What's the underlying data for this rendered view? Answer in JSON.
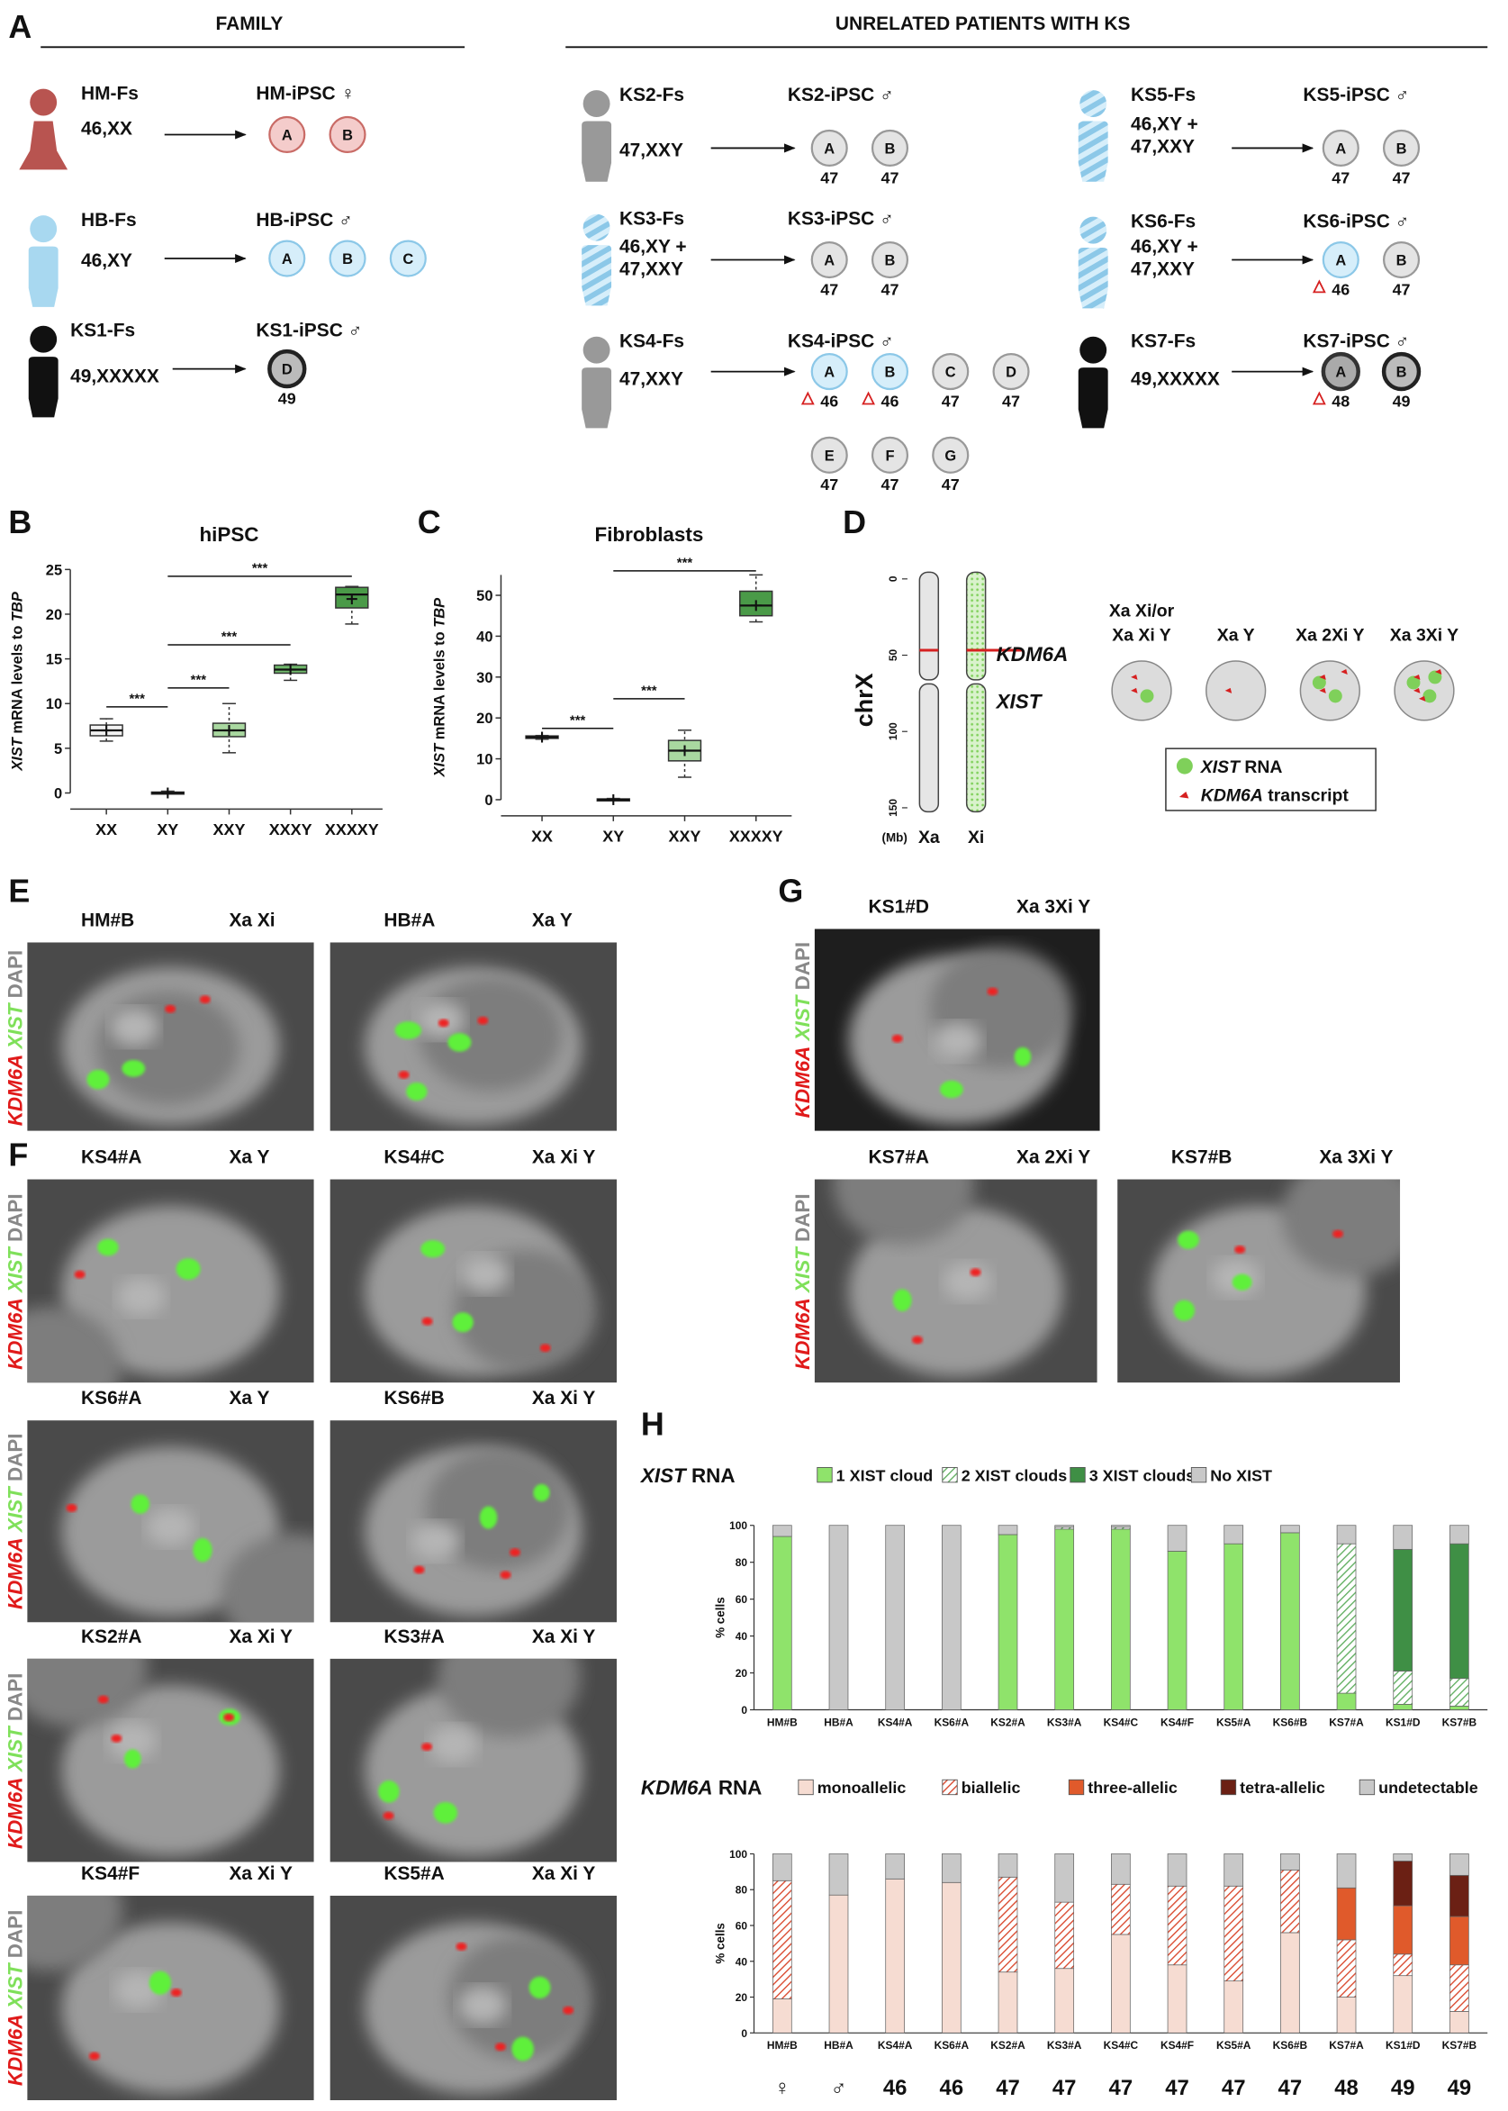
{
  "panel_labels": [
    "A",
    "B",
    "C",
    "D",
    "E",
    "F",
    "G",
    "H"
  ],
  "panel_a": {
    "family_title": "FAMILY",
    "unrelated_title": "UNRELATED PATIENTS WITH KS",
    "lines": [
      {
        "fibroblast": "HM-Fs",
        "karyotype": [
          "46,XX"
        ],
        "ipsc": "HM-iPSC ♀",
        "icon_color": "#b85450",
        "female": true,
        "clones": [
          {
            "id": "A",
            "fill": "#f4cccb",
            "stroke": "#c96b66"
          },
          {
            "id": "B",
            "fill": "#f4cccb",
            "stroke": "#c96b66"
          }
        ]
      },
      {
        "fibroblast": "HB-Fs",
        "karyotype": [
          "46,XY"
        ],
        "ipsc": "HB-iPSC ♂",
        "icon_color": "#a8d8f0",
        "clones": [
          {
            "id": "A",
            "fill": "#d6eefa",
            "stroke": "#8cc8e8"
          },
          {
            "id": "B",
            "fill": "#d6eefa",
            "stroke": "#8cc8e8"
          },
          {
            "id": "C",
            "fill": "#d6eefa",
            "stroke": "#8cc8e8"
          }
        ]
      },
      {
        "fibroblast": "KS1-Fs",
        "karyotype": [
          "49,XXXXX"
        ],
        "ipsc": "KS1-iPSC ♂",
        "icon_color": "#111111",
        "clones": [
          {
            "id": "D",
            "fill": "#bbbbbb",
            "stroke": "#222222",
            "count": "49",
            "count_color": "#111111"
          }
        ]
      },
      {
        "fibroblast": "KS2-Fs",
        "karyotype": [
          "47,XXY"
        ],
        "ipsc": "KS2-iPSC ♂",
        "icon_color": "#999999",
        "clones": [
          {
            "id": "A",
            "fill": "#e4e4e4",
            "stroke": "#999999",
            "count": "47",
            "count_color": "#999999"
          },
          {
            "id": "B",
            "fill": "#e4e4e4",
            "stroke": "#999999",
            "count": "47",
            "count_color": "#999999"
          }
        ]
      },
      {
        "fibroblast": "KS3-Fs",
        "karyotype": [
          "46,XY +",
          "47,XXY"
        ],
        "ipsc": "KS3-iPSC ♂",
        "icon_color": "#a8d8f0",
        "mosaic": true,
        "clones": [
          {
            "id": "A",
            "fill": "#e4e4e4",
            "stroke": "#999999",
            "count": "47",
            "count_color": "#999999"
          },
          {
            "id": "B",
            "fill": "#e4e4e4",
            "stroke": "#999999",
            "count": "47",
            "count_color": "#999999"
          }
        ]
      },
      {
        "fibroblast": "KS4-Fs",
        "karyotype": [
          "47,XXY"
        ],
        "ipsc": "KS4-iPSC ♂",
        "icon_color": "#999999",
        "clones": [
          {
            "id": "A",
            "fill": "#d6eefa",
            "stroke": "#8cc8e8",
            "count": "46",
            "count_color": "#6bbfe8",
            "flag": true
          },
          {
            "id": "B",
            "fill": "#d6eefa",
            "stroke": "#8cc8e8",
            "count": "46",
            "count_color": "#6bbfe8",
            "flag": true
          },
          {
            "id": "C",
            "fill": "#e4e4e4",
            "stroke": "#999999",
            "count": "47",
            "count_color": "#999999"
          },
          {
            "id": "D",
            "fill": "#e4e4e4",
            "stroke": "#999999",
            "count": "47",
            "count_color": "#999999"
          },
          {
            "id": "E",
            "fill": "#e4e4e4",
            "stroke": "#999999",
            "count": "47",
            "count_color": "#999999"
          },
          {
            "id": "F",
            "fill": "#e4e4e4",
            "stroke": "#999999",
            "count": "47",
            "count_color": "#999999"
          },
          {
            "id": "G",
            "fill": "#e4e4e4",
            "stroke": "#999999",
            "count": "47",
            "count_color": "#999999"
          }
        ]
      },
      {
        "fibroblast": "KS5-Fs",
        "karyotype": [
          "46,XY +",
          "47,XXY"
        ],
        "ipsc": "KS5-iPSC ♂",
        "icon_color": "#a8d8f0",
        "mosaic": true,
        "clones": [
          {
            "id": "A",
            "fill": "#e4e4e4",
            "stroke": "#999999",
            "count": "47",
            "count_color": "#999999"
          },
          {
            "id": "B",
            "fill": "#e4e4e4",
            "stroke": "#999999",
            "count": "47",
            "count_color": "#999999"
          }
        ]
      },
      {
        "fibroblast": "KS6-Fs",
        "karyotype": [
          "46,XY +",
          "47,XXY"
        ],
        "ipsc": "KS6-iPSC ♂",
        "icon_color": "#a8d8f0",
        "mosaic": true,
        "clones": [
          {
            "id": "A",
            "fill": "#d6eefa",
            "stroke": "#8cc8e8",
            "count": "46",
            "count_color": "#6bbfe8",
            "flag": true
          },
          {
            "id": "B",
            "fill": "#e4e4e4",
            "stroke": "#999999",
            "count": "47",
            "count_color": "#999999"
          }
        ]
      },
      {
        "fibroblast": "KS7-Fs",
        "karyotype": [
          "49,XXXXX"
        ],
        "ipsc": "KS7-iPSC ♂",
        "icon_color": "#111111",
        "clones": [
          {
            "id": "A",
            "fill": "#aaaaaa",
            "stroke": "#333333",
            "count": "48",
            "count_color": "#555555",
            "flag": true
          },
          {
            "id": "B",
            "fill": "#bbbbbb",
            "stroke": "#222222",
            "count": "49",
            "count_color": "#111111"
          }
        ]
      }
    ]
  },
  "chart_data": [
    {
      "type": "box",
      "title": "hiPSC",
      "y_label": [
        "XIST",
        " mRNA levels to ",
        "TBP"
      ],
      "categories": [
        "XX",
        "XY",
        "XXY",
        "XXXY",
        "XXXXY"
      ],
      "colors": [
        "#f2f2f2",
        "#9b59b6",
        "#a9d8a0",
        "#6fb86a",
        "#4a9a48"
      ],
      "min": [
        5.8,
        0,
        4.5,
        12.6,
        18.9
      ],
      "q1": [
        6.4,
        0,
        6.3,
        13.4,
        20.7
      ],
      "median": [
        7,
        0,
        7,
        13.8,
        22.2
      ],
      "q3": [
        7.6,
        0.1,
        7.8,
        14.3,
        23
      ],
      "max": [
        8.3,
        0.2,
        10,
        14.4,
        23.1
      ],
      "mean": [
        7,
        0,
        7,
        13.8,
        21.7
      ],
      "ylim": [
        0,
        25
      ],
      "yticks": [
        0,
        5,
        10,
        15,
        20,
        25
      ],
      "annotations": [
        "***",
        "***",
        "***",
        "***"
      ]
    },
    {
      "type": "box",
      "title": "Fibroblasts",
      "y_label": [
        "XIST",
        " mRNA levels to ",
        "TBP"
      ],
      "categories": [
        "XX",
        "XY",
        "XXY",
        "XXXXY"
      ],
      "colors": [
        "#e6e6e6",
        "#9b59b6",
        "#a9d8a0",
        "#4a9a48"
      ],
      "min": [
        14.8,
        0,
        5.5,
        43.5
      ],
      "q1": [
        15,
        0,
        9.5,
        45
      ],
      "median": [
        15.3,
        0,
        12,
        47.5
      ],
      "q3": [
        15.6,
        0.2,
        14.5,
        51
      ],
      "max": [
        15.7,
        0.3,
        17,
        55
      ],
      "mean": [
        15.3,
        0,
        12,
        47.5
      ],
      "ylim": [
        0,
        55
      ],
      "yticks": [
        0,
        10,
        20,
        30,
        40,
        50
      ],
      "annotations": [
        "***",
        "***",
        "***"
      ]
    },
    {
      "type": "stacked_bar",
      "title": [
        "XIST",
        " RNA"
      ],
      "y_label": "% cells",
      "categories": [
        "HM#B",
        "HB#A",
        "KS4#A",
        "KS6#A",
        "KS2#A",
        "KS3#A",
        "KS4#C",
        "KS4#F",
        "KS5#A",
        "KS6#B",
        "KS7#A",
        "KS1#D",
        "KS7#B"
      ],
      "ylim": [
        0,
        100
      ],
      "yticks": [
        0,
        20,
        40,
        60,
        80,
        100
      ],
      "series": [
        {
          "name": "1 XIST cloud",
          "color": "#8fe36b",
          "values": [
            94,
            0,
            0,
            0,
            95,
            98,
            98,
            86,
            90,
            96,
            9,
            3,
            2
          ]
        },
        {
          "name": "2 XIST clouds",
          "color": "#5fae5f",
          "hatch": true,
          "values": [
            0,
            0,
            0,
            0,
            0,
            1,
            1,
            0,
            0,
            0,
            81,
            18,
            15
          ]
        },
        {
          "name": "3 XIST clouds",
          "color": "#3f8f45",
          "values": [
            0,
            0,
            0,
            0,
            0,
            0,
            0,
            0,
            0,
            0,
            0,
            66,
            73
          ]
        },
        {
          "name": "No XIST",
          "color": "#c8c8c8",
          "values": [
            6,
            100,
            100,
            100,
            5,
            1,
            1,
            14,
            10,
            4,
            10,
            13,
            10
          ]
        }
      ]
    },
    {
      "type": "stacked_bar",
      "title": [
        "KDM6A",
        " RNA"
      ],
      "y_label": "% cells",
      "categories": [
        "HM#B",
        "HB#A",
        "KS4#A",
        "KS6#A",
        "KS2#A",
        "KS3#A",
        "KS4#C",
        "KS4#F",
        "KS5#A",
        "KS6#B",
        "KS7#A",
        "KS1#D",
        "KS7#B"
      ],
      "ylim": [
        0,
        100
      ],
      "yticks": [
        0,
        20,
        40,
        60,
        80,
        100
      ],
      "series": [
        {
          "name": "monoallelic",
          "color": "#f6dcd2",
          "values": [
            19,
            77,
            86,
            84,
            34,
            36,
            55,
            38,
            29,
            56,
            20,
            32,
            12
          ]
        },
        {
          "name": "biallelic",
          "color": "#d9462b",
          "hatch": true,
          "values": [
            66,
            0,
            0,
            0,
            53,
            37,
            28,
            44,
            53,
            35,
            32,
            12,
            26
          ]
        },
        {
          "name": "three-allelic",
          "color": "#e05a2b",
          "values": [
            0,
            0,
            0,
            0,
            0,
            0,
            0,
            0,
            0,
            0,
            29,
            27,
            27
          ]
        },
        {
          "name": "tetra-allelic",
          "color": "#6b2014",
          "values": [
            0,
            0,
            0,
            0,
            0,
            0,
            0,
            0,
            0,
            0,
            0,
            25,
            23
          ]
        },
        {
          "name": "undetectable",
          "color": "#c8c8c8",
          "values": [
            15,
            23,
            14,
            16,
            13,
            27,
            17,
            18,
            18,
            9,
            19,
            4,
            12
          ]
        }
      ],
      "footer": [
        "♀",
        "♂",
        "46",
        "46",
        "47",
        "47",
        "47",
        "47",
        "47",
        "47",
        "48",
        "49",
        "49"
      ]
    }
  ],
  "panel_d": {
    "chromosome": "chrX",
    "mb_lim": [
      0,
      150
    ],
    "mb_ticks": [
      0,
      50,
      100,
      150
    ],
    "unit": "(Mb)",
    "xa": "Xa",
    "xi": "Xi",
    "kdm6a": "KDM6A",
    "xist": "XIST",
    "cells": [
      [
        "Xa Xi/or",
        "Xa Xi Y"
      ],
      [
        "Xa Y"
      ],
      [
        "Xa 2Xi Y"
      ],
      [
        "Xa 3Xi Y"
      ]
    ],
    "legend": [
      [
        "XIST",
        " RNA"
      ],
      [
        "KDM6A",
        " transcript"
      ]
    ]
  },
  "stain_label": [
    "KDM6A",
    " XIST",
    " DAPI"
  ],
  "microscopy": [
    {
      "sample": "HM#B",
      "state": "Xa Xi"
    },
    {
      "sample": "HB#A",
      "state": "Xa Y"
    },
    {
      "sample": "KS4#A",
      "state": "Xa Y"
    },
    {
      "sample": "KS4#C",
      "state": "Xa Xi Y"
    },
    {
      "sample": "KS6#A",
      "state": "Xa Y"
    },
    {
      "sample": "KS6#B",
      "state": "Xa Xi Y"
    },
    {
      "sample": "KS2#A",
      "state": "Xa Xi Y"
    },
    {
      "sample": "KS3#A",
      "state": "Xa Xi Y"
    },
    {
      "sample": "KS4#F",
      "state": "Xa Xi Y"
    },
    {
      "sample": "KS5#A",
      "state": "Xa Xi Y"
    },
    {
      "sample": "KS1#D",
      "state": "Xa 3Xi Y"
    },
    {
      "sample": "KS7#A",
      "state": "Xa 2Xi Y"
    },
    {
      "sample": "KS7#B",
      "state": "Xa 3Xi Y"
    }
  ]
}
